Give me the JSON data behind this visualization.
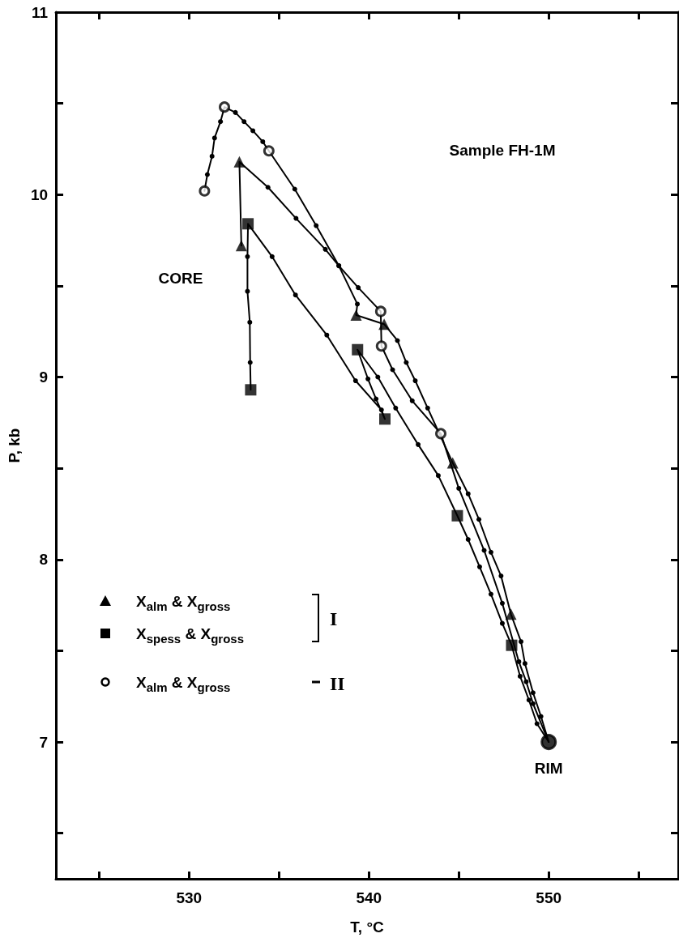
{
  "chart_data": {
    "type": "line",
    "xlabel": "T, °C",
    "ylabel": "P, kb",
    "xlim": [
      522.6,
      557.2
    ],
    "xticks": [
      {
        "value": 525,
        "label": null
      },
      530,
      {
        "value": 535,
        "label": null
      },
      540,
      {
        "value": 545,
        "label": null
      },
      550,
      {
        "value": 555,
        "label": null
      }
    ],
    "ylim": [
      6.25,
      11
    ],
    "yticks": [
      {
        "value": 6.5,
        "label": null
      },
      7,
      {
        "value": 7.5,
        "label": null
      },
      8,
      {
        "value": 8.5,
        "label": null
      },
      9,
      {
        "value": 9.5,
        "label": null
      },
      10,
      {
        "value": 10.5,
        "label": null
      },
      11
    ],
    "grid": false,
    "legend": "left",
    "line_style": "solid",
    "series": [
      {
        "color": "#000000",
        "marker": "circle",
        "x": [
          532.91,
          532.8,
          534.39,
          535.95,
          537.58,
          538.33,
          539.36,
          539.29,
          540.85,
          541.59,
          542.08,
          542.58,
          543.27,
          544.66,
          545.52,
          546.12,
          546.79,
          547.35,
          547.9,
          548.46,
          548.68,
          549.13,
          549.57,
          550
        ],
        "values": [
          9.72,
          10.18,
          10.04,
          9.87,
          9.7,
          9.61,
          9.4,
          9.34,
          9.29,
          9.2,
          9.08,
          8.98,
          8.83,
          8.53,
          8.36,
          8.22,
          8.04,
          7.91,
          7.7,
          7.55,
          7.43,
          7.27,
          7.14,
          7.0
        ]
      },
      {
        "color": "#000000",
        "marker": "circle",
        "x": [
          533.43,
          533.4,
          533.38,
          533.25,
          533.25,
          533.28,
          534.62,
          535.92,
          537.66,
          539.26,
          540.7,
          540.89,
          540.4,
          539.95,
          539.37,
          540.5,
          541.49,
          542.74,
          543.86,
          544.92,
          545.52,
          546.16,
          546.79,
          547.42,
          547.94,
          548.41,
          548.9,
          549.35,
          550
        ],
        "values": [
          8.93,
          9.08,
          9.3,
          9.47,
          9.66,
          9.84,
          9.66,
          9.45,
          9.23,
          8.98,
          8.82,
          8.77,
          8.88,
          8.99,
          9.15,
          9.0,
          8.83,
          8.63,
          8.46,
          8.24,
          8.11,
          7.96,
          7.81,
          7.65,
          7.53,
          7.36,
          7.23,
          7.1,
          7.0
        ]
      },
      {
        "color": "#000000",
        "marker": "circle",
        "x": [
          530.86,
          531.02,
          531.28,
          531.42,
          531.75,
          531.97,
          532.58,
          533.06,
          533.55,
          534.1,
          534.44,
          535.88,
          537.07,
          538.33,
          539.41,
          540.66,
          540.7,
          541.32,
          542.41,
          544.0,
          545.0,
          546.41,
          547.42,
          548.34,
          548.75,
          549.13,
          550
        ],
        "values": [
          10.02,
          10.11,
          10.21,
          10.31,
          10.4,
          10.48,
          10.45,
          10.4,
          10.35,
          10.29,
          10.24,
          10.03,
          9.83,
          9.61,
          9.49,
          9.36,
          9.17,
          9.04,
          8.87,
          8.69,
          8.39,
          8.05,
          7.76,
          7.44,
          7.33,
          7.21,
          7.0
        ]
      },
      {
        "type": "scatter",
        "name": "X$_{alm}$ & X$_{gross}$",
        "color": "#000000",
        "marker": "triangle",
        "x": [
          532.91,
          532.8,
          539.29,
          540.85,
          544.66,
          547.9
        ],
        "values": [
          9.72,
          10.18,
          9.34,
          9.29,
          8.53,
          7.7
        ]
      },
      {
        "type": "scatter",
        "name": "X$_{spess}$ & X$_{gross}$",
        "color": "#000000",
        "marker": "square",
        "x": [
          533.43,
          533.28,
          539.37,
          540.89,
          544.92,
          547.94
        ],
        "values": [
          8.93,
          9.84,
          9.15,
          8.77,
          8.24,
          7.53
        ]
      },
      {
        "type": "scatter",
        "name": "X$_{alm}$ & X$_{gross}$",
        "color": "#ffffff",
        "marker": "circle",
        "x": [
          530.86,
          531.97,
          534.44,
          540.66,
          540.7,
          544.0
        ],
        "values": [
          10.02,
          10.48,
          10.24,
          9.36,
          9.17,
          8.69
        ]
      },
      {
        "type": "scatter",
        "color": "#000000",
        "marker": "circle",
        "x": [
          550
        ],
        "values": [
          7.0
        ]
      }
    ],
    "annotations": [
      "Sample FH-1M",
      "I",
      "II",
      "CORE",
      {
        "text": "RIM",
        "x": 550,
        "y": 7.0
      }
    ]
  }
}
